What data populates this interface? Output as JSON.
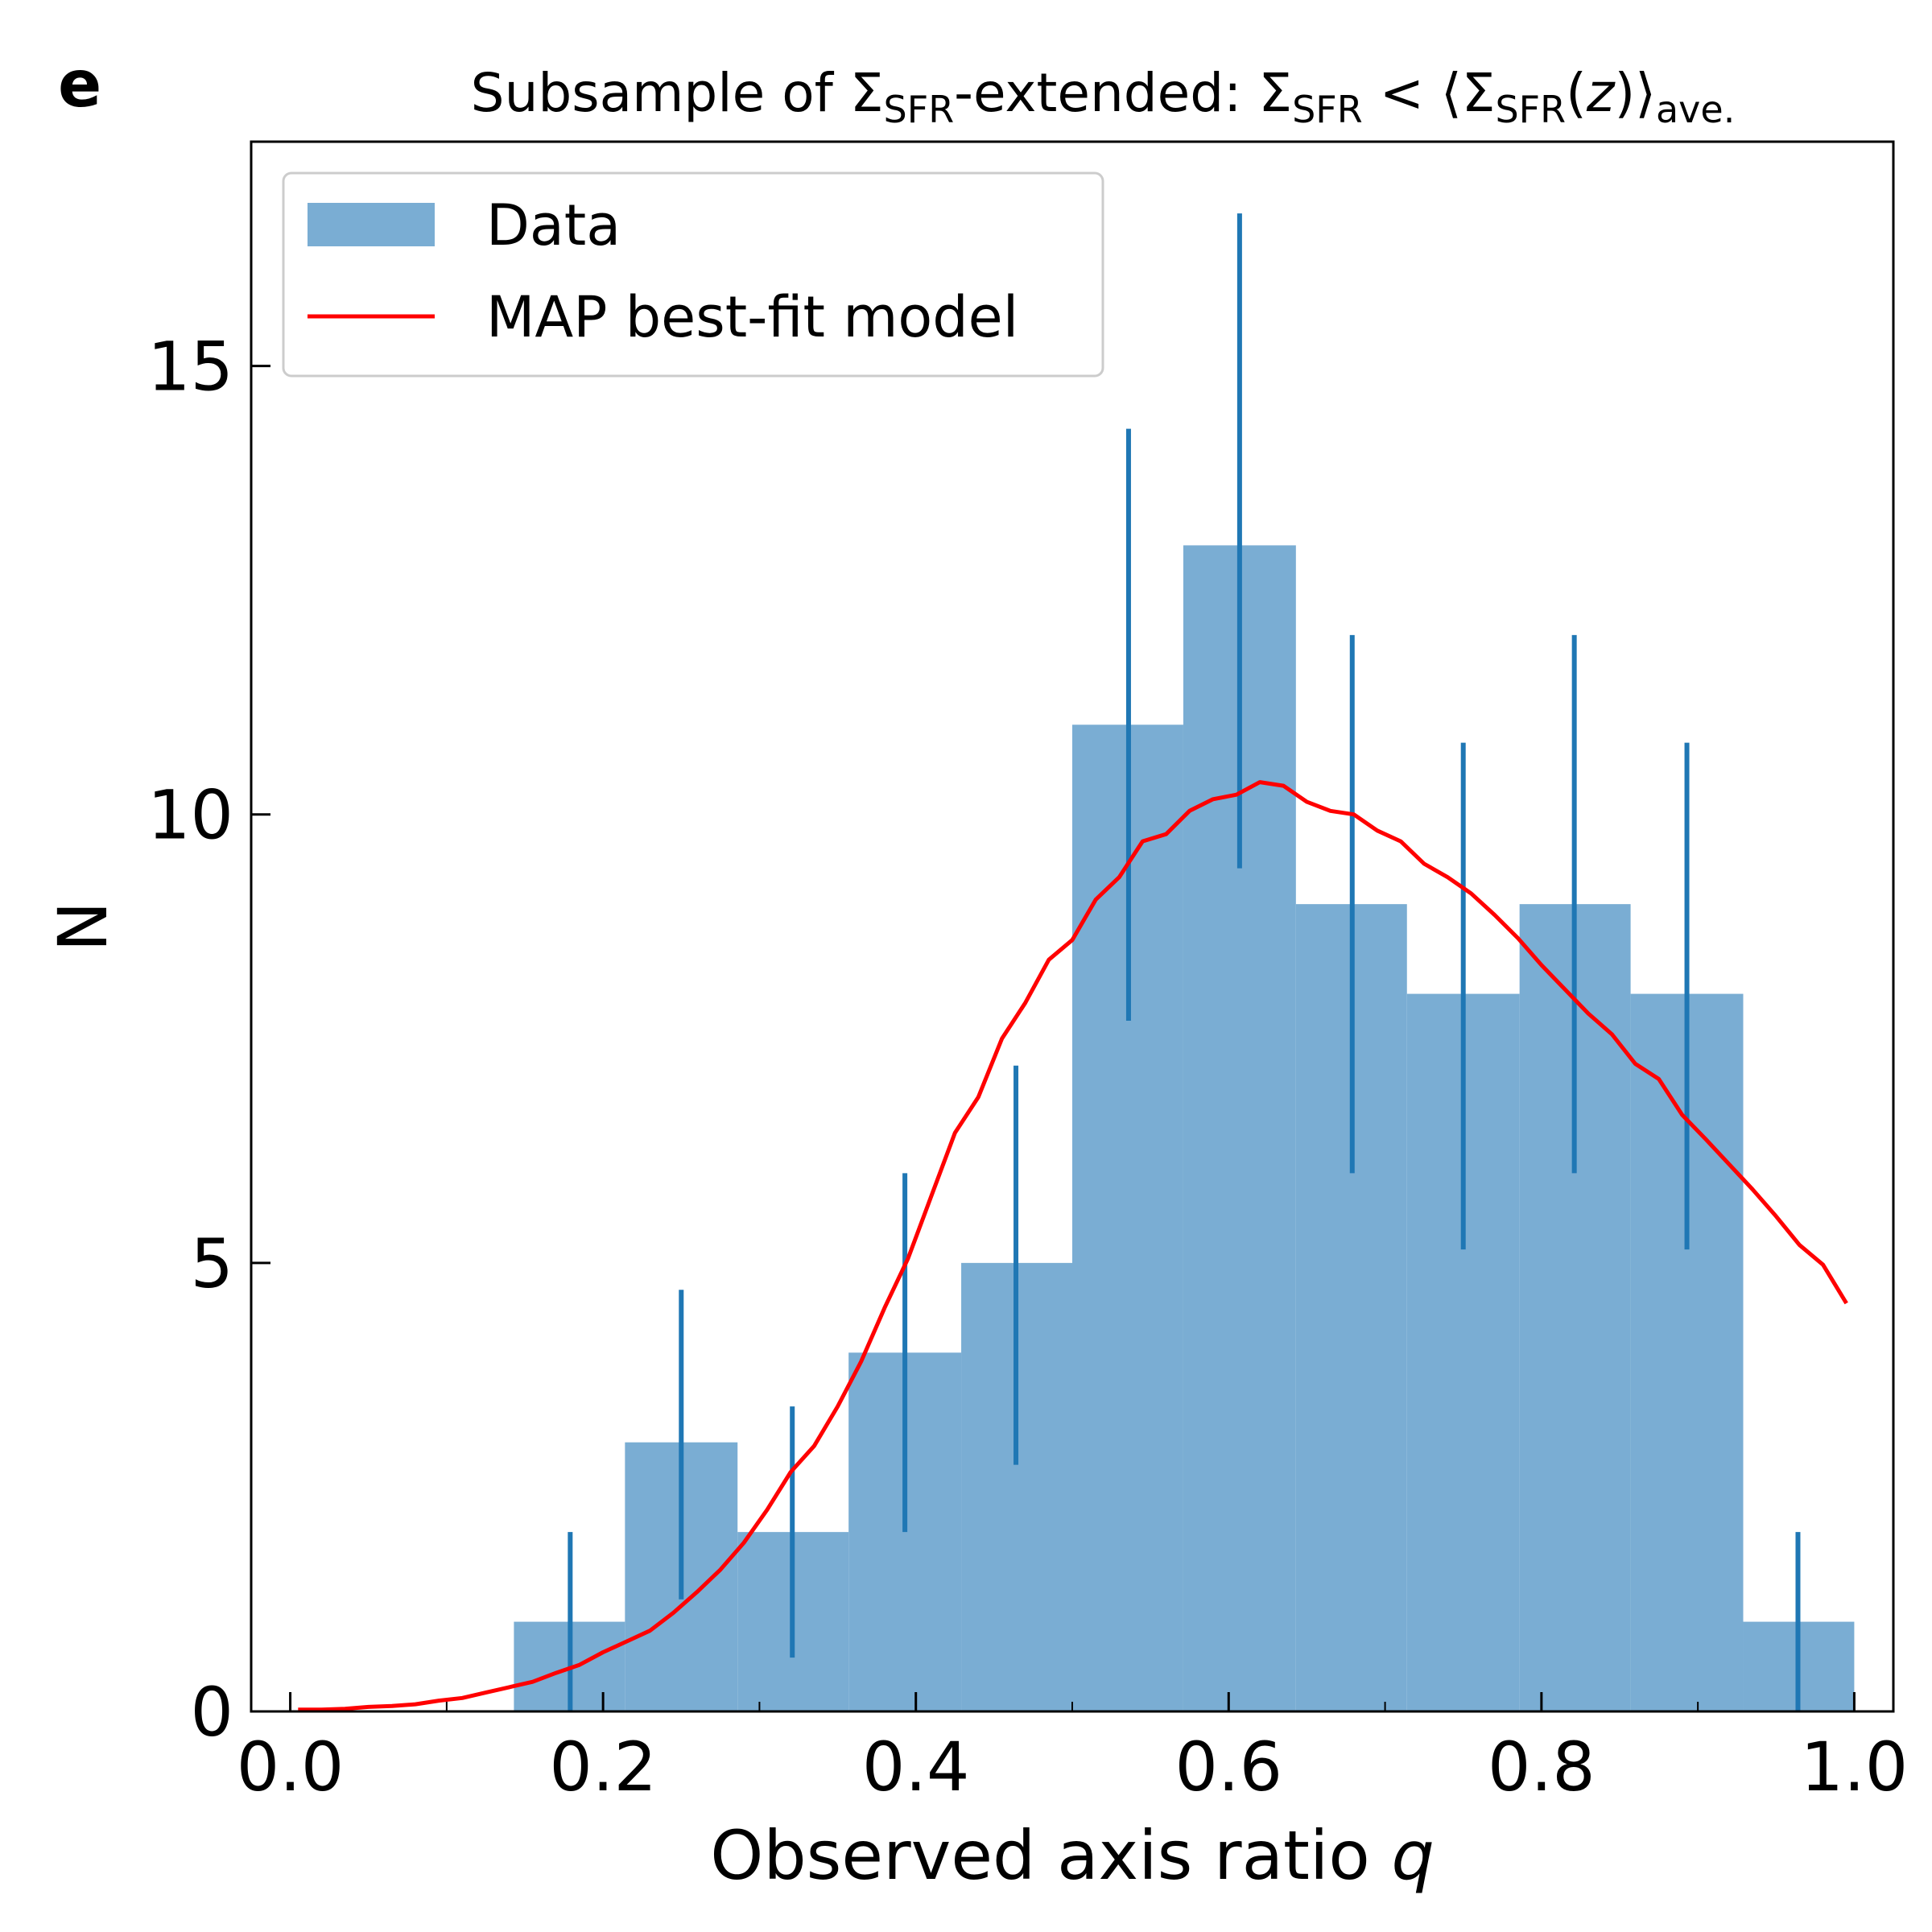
{
  "panel_label": "e",
  "title": {
    "prefix": "Subsample of ",
    "sigma1": "Σ",
    "sub1": "SFR",
    "middle": "-extended: ",
    "sigma2": "Σ",
    "sub2": "SFR",
    "lt": " < ⟨",
    "sigma3": "Σ",
    "sub3": "SFR",
    "open_paren": "(",
    "z": "z",
    "close": ")⟩",
    "sub4": "ave."
  },
  "colors": {
    "bars": "#7aadd3",
    "error_bars": "#1f77b4",
    "model_line": "#ff0000",
    "axes": "#000000"
  },
  "chart_data": {
    "type": "bar",
    "xlabel": "Observed axis ratio",
    "xlabel_symbol": "q",
    "ylabel": "N",
    "xlim": [
      -0.025,
      1.025
    ],
    "ylim": [
      0,
      17.5
    ],
    "xticks": [
      {
        "value": 0.0,
        "label": "0.0"
      },
      {
        "value": 0.2,
        "label": "0.2"
      },
      {
        "value": 0.4,
        "label": "0.4"
      },
      {
        "value": 0.6,
        "label": "0.6"
      },
      {
        "value": 0.8,
        "label": "0.8"
      },
      {
        "value": 1.0,
        "label": "1.0"
      }
    ],
    "xminor": [
      0.1,
      0.3,
      0.5,
      0.7,
      0.9
    ],
    "yticks": [
      {
        "value": 0,
        "label": "0"
      },
      {
        "value": 5,
        "label": "5"
      },
      {
        "value": 10,
        "label": "10"
      },
      {
        "value": 15,
        "label": "15"
      }
    ],
    "grid": false,
    "legend_position": "top-left",
    "histogram": {
      "name": "Data",
      "bin_edges": [
        0.143,
        0.214,
        0.286,
        0.357,
        0.429,
        0.5,
        0.571,
        0.643,
        0.714,
        0.786,
        0.857,
        0.929,
        1.0
      ],
      "counts": [
        1,
        3,
        2,
        4,
        5,
        11,
        13,
        9,
        8,
        9,
        8,
        1
      ]
    },
    "error_bars": [
      {
        "x": 0.179,
        "low": 0.0,
        "high": 2.0
      },
      {
        "x": 0.25,
        "low": 1.25,
        "high": 4.7
      },
      {
        "x": 0.321,
        "low": 0.6,
        "high": 3.4
      },
      {
        "x": 0.393,
        "low": 2.0,
        "high": 6.0
      },
      {
        "x": 0.464,
        "low": 2.75,
        "high": 7.2
      },
      {
        "x": 0.536,
        "low": 7.7,
        "high": 14.3
      },
      {
        "x": 0.607,
        "low": 9.4,
        "high": 16.7
      },
      {
        "x": 0.679,
        "low": 6.0,
        "high": 12.0
      },
      {
        "x": 0.75,
        "low": 5.15,
        "high": 10.8
      },
      {
        "x": 0.821,
        "low": 6.0,
        "high": 12.0
      },
      {
        "x": 0.893,
        "low": 5.15,
        "high": 10.8
      },
      {
        "x": 0.964,
        "low": 0.0,
        "high": 2.0
      }
    ],
    "model": {
      "name": "MAP best-fit model",
      "x": [
        0.005,
        0.02,
        0.035,
        0.05,
        0.065,
        0.08,
        0.095,
        0.11,
        0.125,
        0.14,
        0.155,
        0.17,
        0.185,
        0.2,
        0.215,
        0.23,
        0.245,
        0.26,
        0.275,
        0.29,
        0.305,
        0.32,
        0.335,
        0.35,
        0.365,
        0.38,
        0.395,
        0.41,
        0.425,
        0.44,
        0.455,
        0.47,
        0.485,
        0.5,
        0.515,
        0.53,
        0.545,
        0.56,
        0.575,
        0.59,
        0.605,
        0.62,
        0.635,
        0.65,
        0.665,
        0.68,
        0.695,
        0.71,
        0.725,
        0.74,
        0.755,
        0.77,
        0.785,
        0.8,
        0.815,
        0.83,
        0.845,
        0.86,
        0.875,
        0.89,
        0.905,
        0.92,
        0.935,
        0.95,
        0.965,
        0.98,
        0.995
      ],
      "y": [
        0.02,
        0.02,
        0.03,
        0.05,
        0.06,
        0.08,
        0.12,
        0.15,
        0.21,
        0.27,
        0.33,
        0.43,
        0.52,
        0.66,
        0.78,
        0.9,
        1.1,
        1.33,
        1.58,
        1.88,
        2.25,
        2.67,
        2.96,
        3.4,
        3.9,
        4.5,
        5.05,
        5.75,
        6.45,
        6.85,
        7.5,
        7.9,
        8.38,
        8.6,
        9.05,
        9.3,
        9.7,
        9.78,
        10.04,
        10.17,
        10.22,
        10.36,
        10.32,
        10.14,
        10.04,
        10.0,
        9.82,
        9.7,
        9.45,
        9.3,
        9.12,
        8.88,
        8.62,
        8.32,
        8.05,
        7.78,
        7.55,
        7.22,
        7.05,
        6.65,
        6.38,
        6.1,
        5.82,
        5.52,
        5.2,
        4.98,
        4.55
      ]
    }
  }
}
